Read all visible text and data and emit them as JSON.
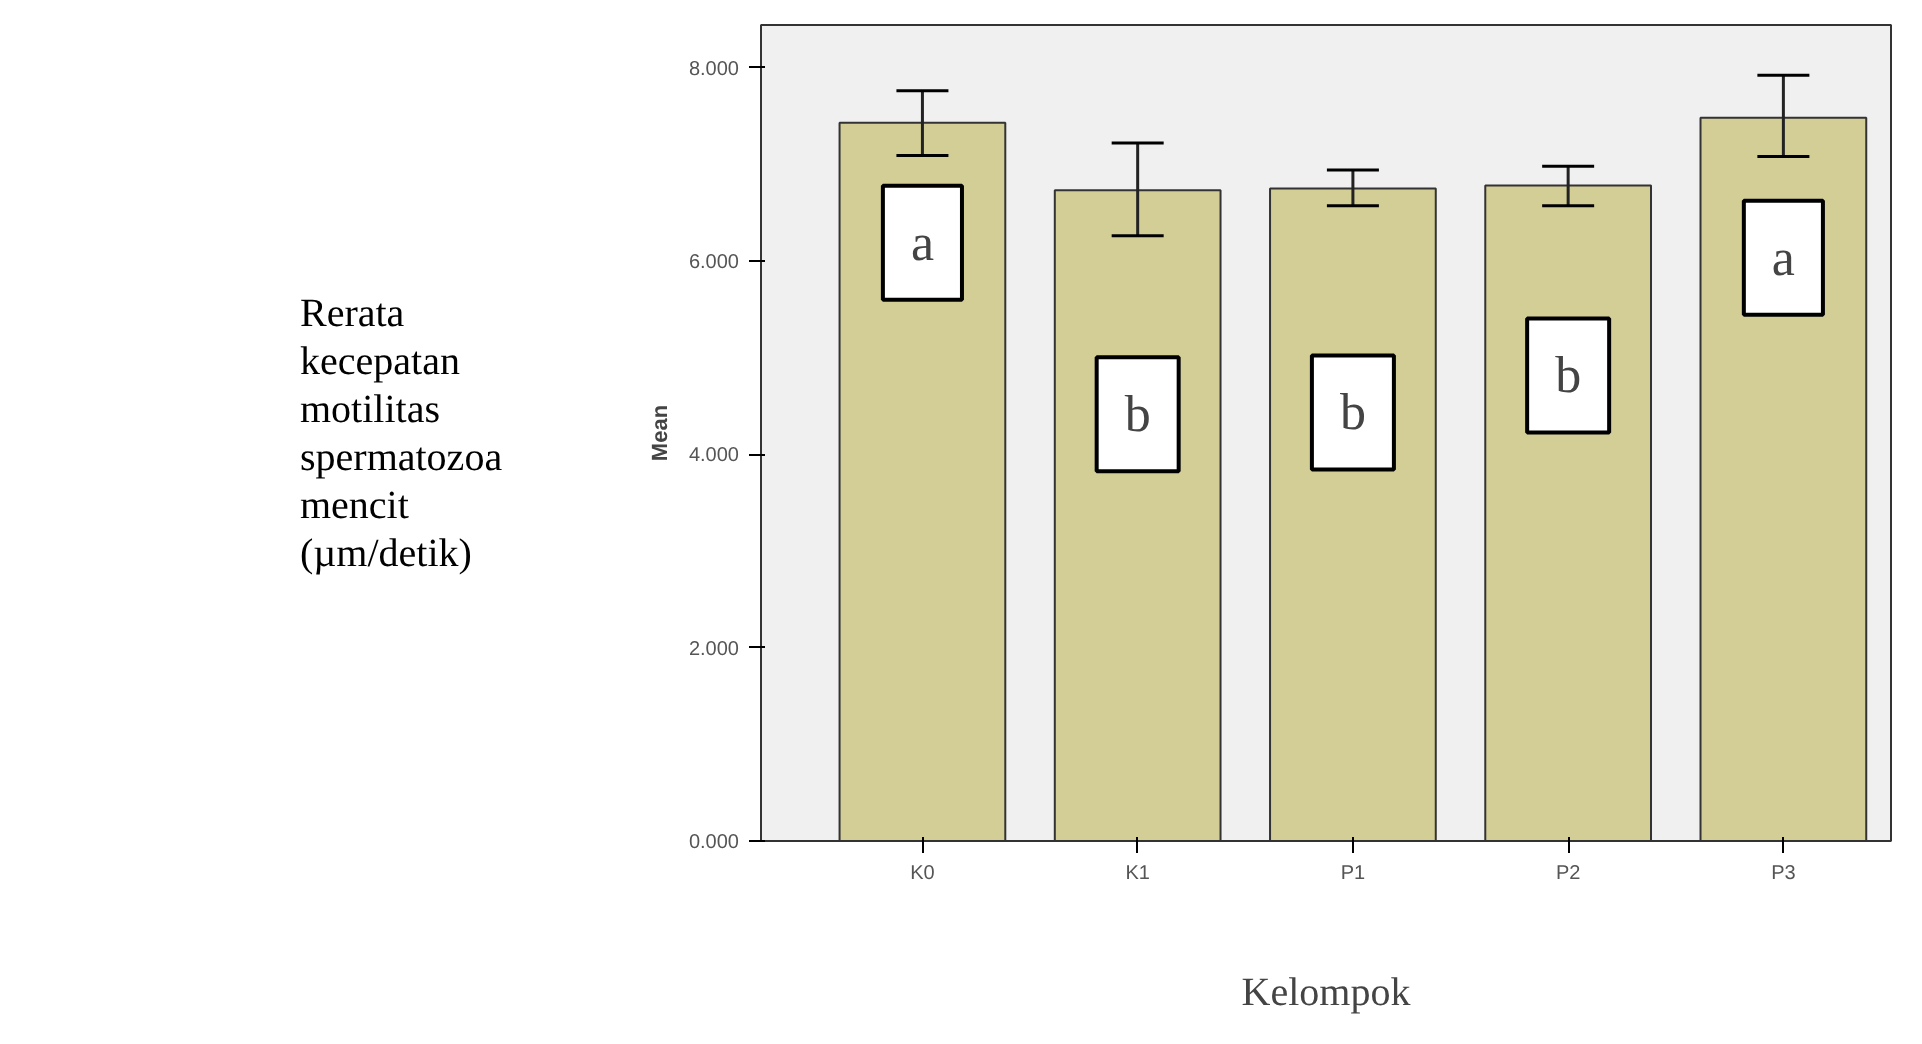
{
  "chart_data": {
    "type": "bar",
    "categories": [
      "K0",
      "K1",
      "P1",
      "P2",
      "P3"
    ],
    "values": [
      7.43,
      6.73,
      6.75,
      6.78,
      7.48
    ],
    "errors": [
      [
        7.09,
        7.76
      ],
      [
        6.26,
        7.22
      ],
      [
        6.57,
        6.94
      ],
      [
        6.57,
        6.98
      ],
      [
        7.08,
        7.92
      ]
    ],
    "color": "#d3cd96",
    "ylabel": "Mean",
    "xlabel": "Kelompok",
    "ylim": [
      0,
      8.44
    ],
    "yticks": [
      {
        "value": 0,
        "label": "0.000"
      },
      {
        "value": 2,
        "label": "2.000"
      },
      {
        "value": 4,
        "label": "4.000"
      },
      {
        "value": 6,
        "label": "6.000"
      },
      {
        "value": 8,
        "label": "8.000"
      }
    ],
    "grid": false,
    "annotations": [
      "Rerata kecepatan motilitas spermatozoa mencit (µm/detik)",
      "a",
      "b",
      "b",
      "b",
      "a"
    ]
  }
}
